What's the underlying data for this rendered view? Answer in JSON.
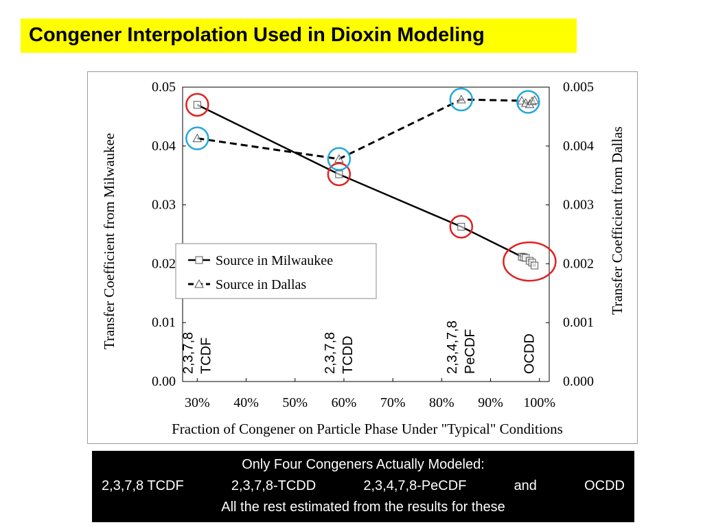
{
  "title": "Congener Interpolation Used in Dioxin Modeling",
  "colors": {
    "title_bg": "#ffff00",
    "note_bg": "#000000",
    "note_text": "#ffffff",
    "red_circle": "#e02020",
    "blue_circle": "#1fa8e0"
  },
  "chart_data": {
    "type": "line",
    "xlabel": "Fraction of Congener on Particle Phase Under \"Typical\" Conditions",
    "ylabel_left": "Transfer Coefficient from Milwaukee",
    "ylabel_right": "Transfer Coefficient from Dallas",
    "x_ticks": [
      "30%",
      "40%",
      "50%",
      "60%",
      "70%",
      "80%",
      "90%",
      "100%"
    ],
    "y_left_ticks": [
      "0.00",
      "0.01",
      "0.02",
      "0.03",
      "0.04",
      "0.05"
    ],
    "y_right_ticks": [
      "0.000",
      "0.001",
      "0.002",
      "0.003",
      "0.004",
      "0.005"
    ],
    "xlim": [
      0.27,
      1.02
    ],
    "ylim_left": [
      0,
      0.05
    ],
    "ylim_right": [
      0,
      0.005
    ],
    "grid": false,
    "legend_position": "center-left",
    "series": [
      {
        "name": "Source in Milwaukee",
        "axis": "left",
        "style": "solid",
        "marker": "square",
        "x": [
          0.3,
          0.59,
          0.84,
          0.964,
          0.968,
          0.972,
          0.98,
          0.985,
          0.99
        ],
        "y": [
          0.047,
          0.0352,
          0.0263,
          0.0212,
          0.0211,
          0.021,
          0.0205,
          0.0202,
          0.0197
        ]
      },
      {
        "name": "Source in Dallas",
        "axis": "right",
        "style": "dashed",
        "marker": "triangle",
        "x": [
          0.3,
          0.59,
          0.84,
          0.964,
          0.972,
          0.98,
          0.985,
          0.99
        ],
        "y": [
          0.00413,
          0.00378,
          0.00479,
          0.00477,
          0.00473,
          0.00471,
          0.00476,
          0.00478
        ]
      }
    ],
    "annotations": [
      {
        "lines": [
          "2,3,7,8",
          "TCDF"
        ],
        "x": 0.3
      },
      {
        "lines": [
          "2,3,7,8",
          "TCDD"
        ],
        "x": 0.59
      },
      {
        "lines": [
          "2,3,4,7,8",
          "PeCDF"
        ],
        "x": 0.84
      },
      {
        "lines": [
          "OCDD"
        ],
        "x": 0.98
      }
    ],
    "highlight_circles": [
      {
        "color": "red",
        "series": "Source in Milwaukee",
        "x": 0.3
      },
      {
        "color": "red",
        "series": "Source in Milwaukee",
        "x": 0.59
      },
      {
        "color": "red",
        "series": "Source in Milwaukee",
        "x": 0.84
      },
      {
        "color": "red",
        "series": "Source in Milwaukee",
        "x": 0.977
      },
      {
        "color": "blue",
        "series": "Source in Dallas",
        "x": 0.3
      },
      {
        "color": "blue",
        "series": "Source in Dallas",
        "x": 0.59
      },
      {
        "color": "blue",
        "series": "Source in Dallas",
        "x": 0.84
      },
      {
        "color": "blue",
        "series": "Source in Dallas",
        "x": 0.977
      }
    ]
  },
  "note": {
    "line1": "Only Four Congeners Actually Modeled:",
    "congeners": [
      "2,3,7,8 TCDF",
      "2,3,7,8-TCDD",
      "2,3,4,7,8-PeCDF",
      "and",
      "OCDD"
    ],
    "line3": "All the rest estimated from the results for these"
  }
}
